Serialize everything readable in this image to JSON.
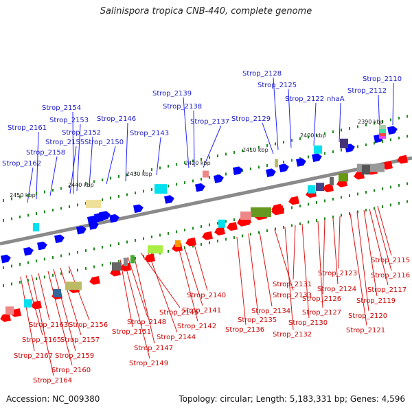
{
  "title": "Salinispora tropica CNB-440, complete genome",
  "footer": {
    "accession": "Accession: NC_009380",
    "topology": "Topology: circular; Length: 5,183,331 bp; Genes: 4,596"
  },
  "colors": {
    "backbone": "#8a8a8a",
    "reverse_gene": "#ff0000",
    "forward_gene": "#0000ff",
    "top_leader": "#2020ff",
    "bottom_leader": "#dd1111",
    "tick": "#1e8a1e"
  },
  "kbp_markers": [
    "2390 kbp",
    "2400 kbp",
    "2410 kbp",
    "2420 kbp",
    "2430 kbp",
    "2440 kbp",
    "2450 kbp"
  ],
  "top_labels": [
    "Strop_2110",
    "Strop_2112",
    "Strop_2122",
    "nhaA",
    "Strop_2125",
    "Strop_2128",
    "Strop_2129",
    "Strop_2137",
    "Strop_2138",
    "Strop_2139",
    "Strop_2143",
    "Strop_2146",
    "Strop_2150",
    "Strop_2152",
    "Strop_2153",
    "Strop_2154",
    "Strop_2155",
    "Strop_2158",
    "Strop_2161",
    "Strop_2162"
  ],
  "bottom_labels": [
    "Strop_2115",
    "Strop_2116",
    "Strop_2117",
    "Strop_2119",
    "Strop_2120",
    "Strop_2121",
    "Strop_2123",
    "Strop_2124",
    "Strop_2126",
    "Strop_2127",
    "Strop_2130",
    "Strop_2131",
    "Strop_2132",
    "Strop_2133",
    "Strop_2134",
    "Strop_2135",
    "Strop_2136",
    "Strop_2140",
    "Strop_2141",
    "Strop_2142",
    "Strop_2144",
    "Strop_2145",
    "Strop_2147",
    "Strop_2148",
    "Strop_2149",
    "Strop_2151",
    "Strop_2156",
    "Strop_2157",
    "Strop_2159",
    "Strop_2160",
    "Strop_2163",
    "Strop_2164",
    "Strop_2165",
    "Strop_2167"
  ]
}
